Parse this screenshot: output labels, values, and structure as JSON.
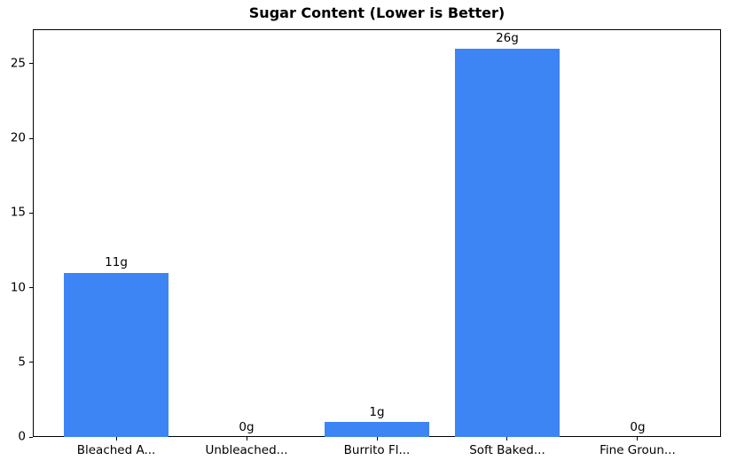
{
  "chart_data": {
    "type": "bar",
    "title": "Sugar Content (Lower is Better)",
    "categories": [
      "Bleached A...",
      "Unbleached...",
      "Burrito Fl...",
      "Soft Baked...",
      "Fine Groun..."
    ],
    "values": [
      11,
      0,
      1,
      26,
      0
    ],
    "value_labels": [
      "11g",
      "0g",
      "1g",
      "26g",
      "0g"
    ],
    "yticks": [
      0,
      5,
      10,
      15,
      20,
      25
    ],
    "ylim": [
      0,
      27.3
    ],
    "xlabel": "",
    "ylabel": "",
    "bar_color": "#3d84f5",
    "axis_color": "#000000",
    "text_color": "#000000",
    "grid": false,
    "legend": false
  }
}
